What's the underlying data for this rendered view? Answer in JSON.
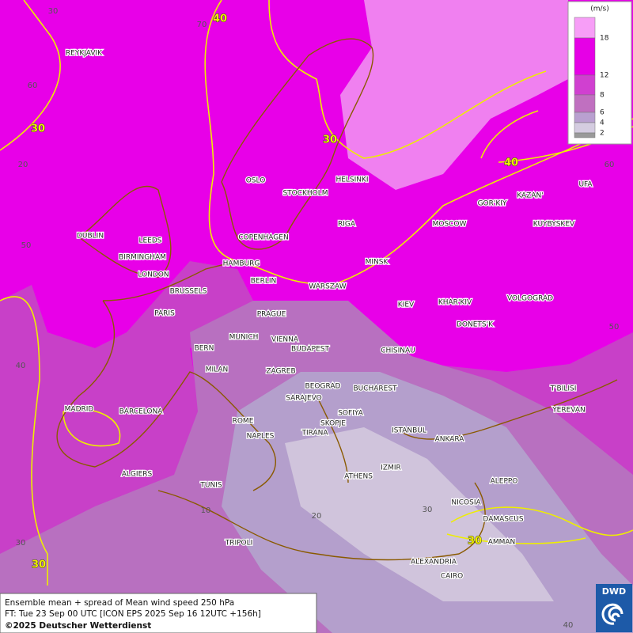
{
  "legend": {
    "unit": "(m/s)",
    "levels": [
      18,
      12,
      8,
      6,
      4,
      2
    ]
  },
  "contour_labels": [
    40,
    30,
    30,
    40,
    30,
    30
  ],
  "grid_labels": [
    30,
    70,
    60,
    20,
    50,
    40,
    30,
    10,
    20,
    30,
    40,
    60,
    50
  ],
  "cities": [
    "REYKJAVIK",
    "OSLO",
    "STOCKHOLM",
    "HELSINKI",
    "DUBLIN",
    "LEEDS",
    "COPENHAGEN",
    "RIGA",
    "BIRMINGHAM",
    "HAMBURG",
    "MINSK",
    "LONDON",
    "BERLIN",
    "WARSZAW",
    "MOSCOW",
    "GOR'KIY",
    "KAZAN'",
    "UFA",
    "KUYBYSKEV",
    "BRUSSELS",
    "PARIS",
    "PRAGUE",
    "KIEV",
    "KHAR'KIV",
    "VOLGOGRAD",
    "DONETS'K",
    "MUNICH",
    "VIENNA",
    "BERN",
    "BUDAPEST",
    "CHISINAU",
    "MILAN",
    "ZAGREB",
    "BEOGRAD",
    "BUCHAREST",
    "T'BILISI",
    "SARAJEVO",
    "MADRID",
    "BARCELONA",
    "SOFIYA",
    "YEREVAN",
    "ROME",
    "SKOPJE",
    "NAPLES",
    "TIRANA",
    "ISTANBUL",
    "ANKARA",
    "IZMIR",
    "ATHENS",
    "ALGIERS",
    "ALEPPO",
    "TUNIS",
    "NICOSIA",
    "DAMASCUS",
    "AMMAN",
    "TRIPOLI",
    "ALEXANDRIA",
    "CAIRO"
  ],
  "footer": {
    "line1": "Ensemble mean + spread of Mean wind speed 250 hPa",
    "line2": "FT: Tue 23 Sep 00 UTC [ICON EPS 2025 Sep 16 12UTC +156h]",
    "line3": "©2025 Deutscher Wetterdienst"
  },
  "logo": "DWD"
}
